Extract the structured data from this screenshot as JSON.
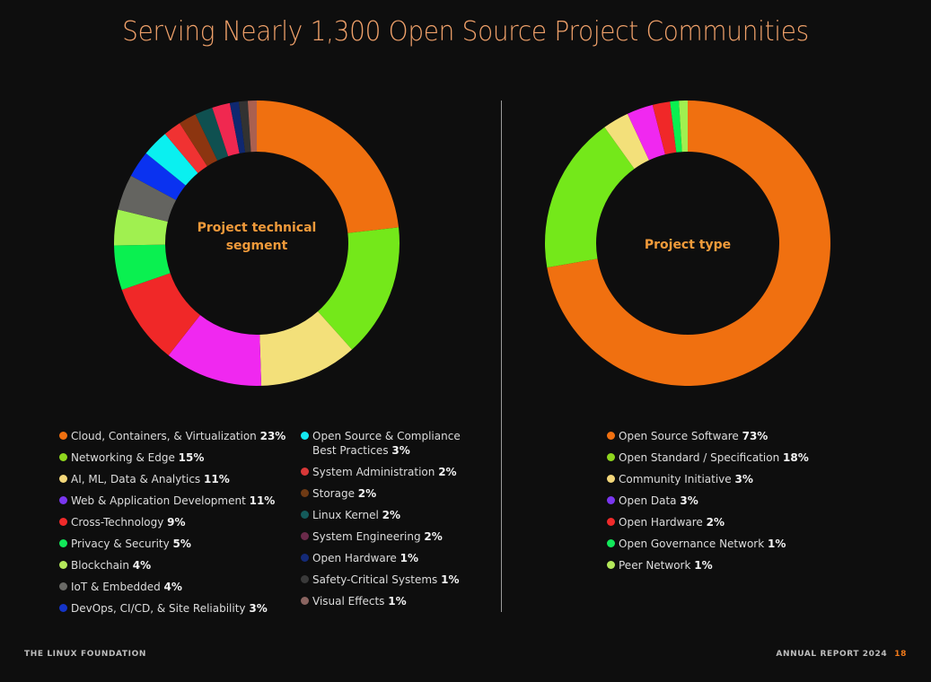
{
  "title": "Serving Nearly 1,300 Open Source Project Communities",
  "footer": {
    "left": "THE LINUX FOUNDATION",
    "right": "ANNUAL REPORT 2024",
    "page": "18"
  },
  "chart_data": [
    {
      "type": "pie",
      "variant": "donut",
      "title": "Project technical segment",
      "unit": "%",
      "legend_position": "bottom",
      "slices": [
        {
          "label": "Cloud, Containers, & Virtualization",
          "value": 23,
          "color": "#f07010",
          "legend_color": "#f07010"
        },
        {
          "label": "Networking & Edge",
          "value": 15,
          "color": "#74e81a",
          "legend_color": "#8fd61e"
        },
        {
          "label": "AI, ML, Data & Analytics",
          "value": 11,
          "color": "#f3e07a",
          "legend_color": "#f3d77a"
        },
        {
          "label": "Web & Application Development",
          "value": 11,
          "color": "#f028f0",
          "legend_color": "#7a36f0"
        },
        {
          "label": "Cross-Technology",
          "value": 9,
          "color": "#f02828",
          "legend_color": "#f02a2a"
        },
        {
          "label": "Privacy & Security",
          "value": 5,
          "color": "#0af050",
          "legend_color": "#12e85a"
        },
        {
          "label": "Blockchain",
          "value": 4,
          "color": "#a0f050",
          "legend_color": "#b4e85a"
        },
        {
          "label": "IoT & Embedded",
          "value": 4,
          "color": "#646460",
          "legend_color": "#6a6a66"
        },
        {
          "label": "DevOps, CI/CD, & Site Reliability",
          "value": 3,
          "color": "#0a32f0",
          "legend_color": "#1434c8"
        },
        {
          "label": "Open Source & Compliance Best Practices",
          "value": 3,
          "color": "#0af0f0",
          "legend_color": "#14e8f0"
        },
        {
          "label": "System Administration",
          "value": 2,
          "color": "#f03232",
          "legend_color": "#d83838"
        },
        {
          "label": "Storage",
          "value": 2,
          "color": "#8c3510",
          "legend_color": "#6e3a14"
        },
        {
          "label": "Linux Kernel",
          "value": 2,
          "color": "#0f5050",
          "legend_color": "#145a5a"
        },
        {
          "label": "System Engineering",
          "value": 2,
          "color": "#f02850",
          "legend_color": "#6a2a4a"
        },
        {
          "label": "Open Hardware",
          "value": 1,
          "color": "#0f2870",
          "legend_color": "#142a78"
        },
        {
          "label": "Safety-Critical Systems",
          "value": 1,
          "color": "#323232",
          "legend_color": "#3a3a3a"
        },
        {
          "label": "Visual Effects",
          "value": 1,
          "color": "#aa6050",
          "legend_color": "#8a6460"
        }
      ]
    },
    {
      "type": "pie",
      "variant": "donut",
      "title": "Project type",
      "unit": "%",
      "legend_position": "bottom",
      "slices": [
        {
          "label": "Open Source Software",
          "value": 73,
          "color": "#f07010",
          "legend_color": "#f07010"
        },
        {
          "label": "Open Standard / Specification",
          "value": 18,
          "color": "#74e81a",
          "legend_color": "#8fd61e"
        },
        {
          "label": "Community Initiative",
          "value": 3,
          "color": "#f3e07a",
          "legend_color": "#f3d77a"
        },
        {
          "label": "Open Data",
          "value": 3,
          "color": "#f028f0",
          "legend_color": "#7a36f0"
        },
        {
          "label": "Open Hardware",
          "value": 2,
          "color": "#f02828",
          "legend_color": "#f02a2a"
        },
        {
          "label": "Open Governance Network",
          "value": 1,
          "color": "#0af050",
          "legend_color": "#12e85a"
        },
        {
          "label": "Peer Network",
          "value": 1,
          "color": "#a0f050",
          "legend_color": "#b4e85a"
        }
      ]
    }
  ]
}
